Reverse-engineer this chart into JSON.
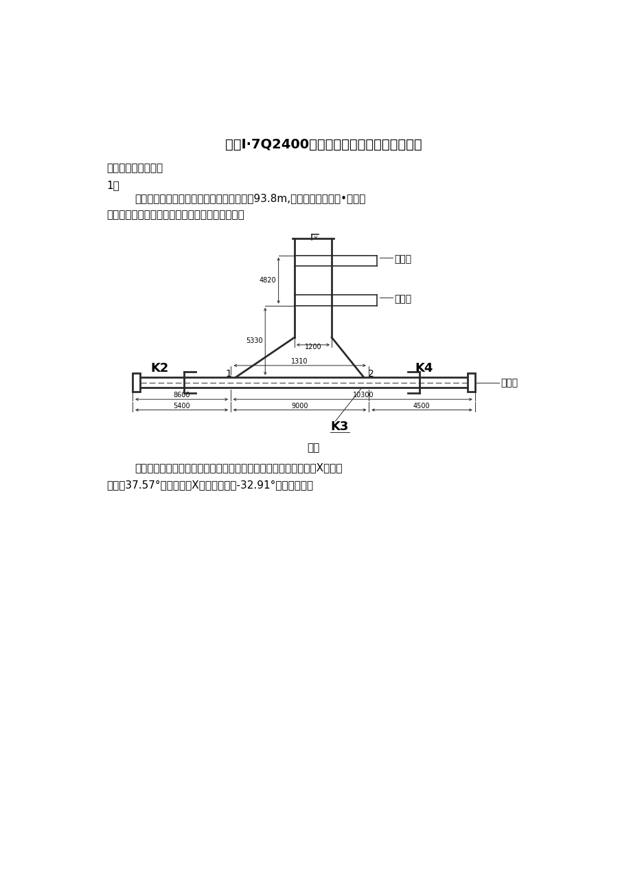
{
  "title": "惠来I·7Q2400附着自升式塔机附着梁校核计算",
  "subtitle": "附：临时梁设计校核",
  "para1_num": "1、",
  "para1_line1": "根据惠来钢架高度，该吊机塔身安装高度为93.8m,采用两层附著（第•层下附",
  "para1_line2": "着和第二层上附若），塔机附着方式如下图所示：",
  "fig_caption": "图一",
  "para2_line1": "根据郑机所提供的资料，吊机塔身附着为最大时的工况为起重情与X方向的",
  "para2_line2": "夹角为37.57°和起重再与X方向的夹角为-32.91°如下图所示：",
  "bg_color": "#ffffff",
  "text_color": "#000000",
  "diagram_color": "#2a2a2a"
}
